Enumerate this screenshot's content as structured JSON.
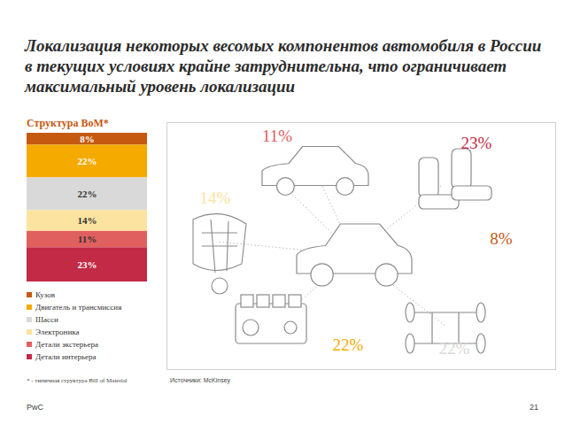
{
  "title": "Локализация некоторых весомых компонентов автомобиля в России в текущих условиях крайне затруднительна, что ограничивает максимальный уровень локализации",
  "chart_data": {
    "type": "bar",
    "title": "Структура BoM*",
    "stacked": true,
    "categories": [
      null
    ],
    "ylim": [
      0,
      100
    ],
    "tick_labels": false,
    "data_labels": true,
    "legend": "bottom",
    "series": [
      {
        "name": "Кузов",
        "color": "#c5590f",
        "values": [
          8
        ],
        "value_labels": [
          "8%"
        ]
      },
      {
        "name": "Двигатель и трансмиссия",
        "color": "#f5aa00",
        "values": [
          22
        ],
        "value_labels": [
          "22%"
        ]
      },
      {
        "name": "Шасси",
        "color": "#d9d9d9",
        "values": [
          22
        ],
        "value_labels": [
          "22%"
        ]
      },
      {
        "name": "Электроника",
        "color": "#fde3a0",
        "values": [
          14
        ],
        "value_labels": [
          "14%"
        ]
      },
      {
        "name": "Детали экстерьера",
        "color": "#e0605f",
        "values": [
          11
        ],
        "value_labels": [
          "11%"
        ]
      },
      {
        "name": "Детали интерьера",
        "color": "#c22a45",
        "values": [
          23
        ],
        "value_labels": [
          "23%"
        ]
      }
    ]
  },
  "footnote": "* - типичная структура Bill of Material",
  "source": "Источники: McKinsey",
  "footer": {
    "brand": "PwC",
    "page": "21"
  }
}
